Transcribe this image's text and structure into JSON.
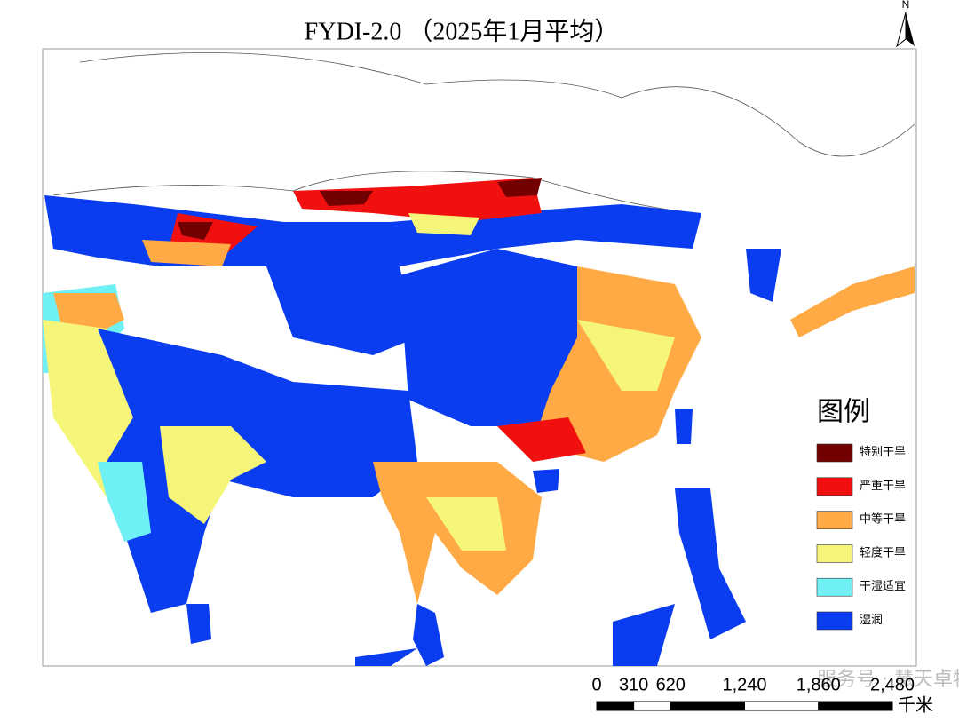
{
  "title": "FYDI-2.0 （2025年1月平均）",
  "north": "N",
  "legend": {
    "title": "图例",
    "items": [
      {
        "label": "特别干旱",
        "color": "#730000"
      },
      {
        "label": "严重干旱",
        "color": "#f01010"
      },
      {
        "label": "中等干旱",
        "color": "#ffaa44"
      },
      {
        "label": "轻度干旱",
        "color": "#f5f57a"
      },
      {
        "label": "干湿适宜",
        "color": "#6ef0f5"
      },
      {
        "label": "湿润",
        "color": "#0a3cf0"
      }
    ]
  },
  "scale_bar": {
    "ticks": [
      0,
      310,
      620,
      {
        "value": 1240,
        "label": "1,240"
      },
      {
        "value": 1860,
        "label": "1,860"
      },
      {
        "value": 2480,
        "label": "2,480"
      }
    ],
    "unit": "千米"
  },
  "watermark": "服务号 · 慧天卓特"
}
